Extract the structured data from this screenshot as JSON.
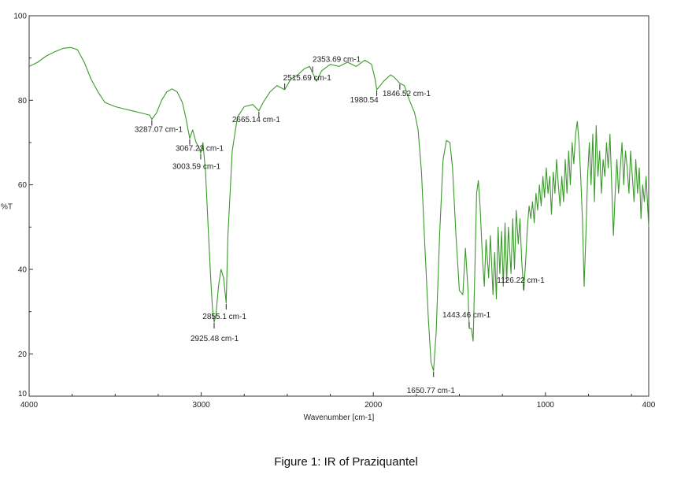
{
  "chart_data": {
    "type": "line",
    "xlabel": "Wavenumber [cm-1]",
    "ylabel": "%T",
    "xlim": [
      4000,
      400
    ],
    "ylim": [
      10,
      100
    ],
    "x_ticks": [
      "4000",
      "3000",
      "2000",
      "1000",
      "400"
    ],
    "y_ticks": [
      "100",
      "80",
      "60",
      "40",
      "20",
      "10"
    ],
    "grid": false,
    "legend": "none",
    "line_color": "#3a9a2a",
    "series": [
      {
        "points": [
          [
            4000,
            88
          ],
          [
            3950,
            89
          ],
          [
            3900,
            90.5
          ],
          [
            3850,
            91.5
          ],
          [
            3800,
            92.3
          ],
          [
            3760,
            92.5
          ],
          [
            3720,
            92
          ],
          [
            3680,
            89
          ],
          [
            3640,
            85
          ],
          [
            3600,
            82
          ],
          [
            3560,
            79.5
          ],
          [
            3500,
            78.5
          ],
          [
            3450,
            78
          ],
          [
            3400,
            77.5
          ],
          [
            3350,
            77
          ],
          [
            3300,
            76.5
          ],
          [
            3287,
            75.5
          ],
          [
            3260,
            77
          ],
          [
            3230,
            80
          ],
          [
            3200,
            82
          ],
          [
            3170,
            82.7
          ],
          [
            3140,
            82
          ],
          [
            3110,
            79.5
          ],
          [
            3090,
            76
          ],
          [
            3067,
            71
          ],
          [
            3050,
            73
          ],
          [
            3030,
            70
          ],
          [
            3015,
            69
          ],
          [
            3003,
            67.5
          ],
          [
            2990,
            70
          ],
          [
            2975,
            63
          ],
          [
            2960,
            50
          ],
          [
            2945,
            38
          ],
          [
            2935,
            31
          ],
          [
            2925,
            27.5
          ],
          [
            2915,
            29
          ],
          [
            2900,
            36
          ],
          [
            2885,
            40
          ],
          [
            2870,
            38
          ],
          [
            2855,
            32
          ],
          [
            2845,
            48
          ],
          [
            2820,
            68
          ],
          [
            2790,
            76
          ],
          [
            2750,
            78.5
          ],
          [
            2700,
            79
          ],
          [
            2665,
            77.5
          ],
          [
            2640,
            79.5
          ],
          [
            2600,
            82
          ],
          [
            2560,
            83.5
          ],
          [
            2515,
            82.5
          ],
          [
            2480,
            85
          ],
          [
            2440,
            86
          ],
          [
            2400,
            87.5
          ],
          [
            2370,
            88
          ],
          [
            2353,
            86.5
          ],
          [
            2330,
            84.5
          ],
          [
            2300,
            87
          ],
          [
            2250,
            88.5
          ],
          [
            2200,
            88
          ],
          [
            2150,
            89
          ],
          [
            2100,
            88
          ],
          [
            2050,
            89.5
          ],
          [
            2010,
            88.5
          ],
          [
            1990,
            85
          ],
          [
            1980,
            82.5
          ],
          [
            1960,
            83.5
          ],
          [
            1940,
            84.5
          ],
          [
            1900,
            86
          ],
          [
            1880,
            85.5
          ],
          [
            1846,
            84
          ],
          [
            1820,
            83.5
          ],
          [
            1790,
            80
          ],
          [
            1760,
            77
          ],
          [
            1740,
            73
          ],
          [
            1720,
            63
          ],
          [
            1700,
            45
          ],
          [
            1680,
            28
          ],
          [
            1665,
            18
          ],
          [
            1650,
            16
          ],
          [
            1635,
            25
          ],
          [
            1615,
            48
          ],
          [
            1595,
            66
          ],
          [
            1575,
            70.5
          ],
          [
            1555,
            70
          ],
          [
            1540,
            64
          ],
          [
            1520,
            48
          ],
          [
            1500,
            35
          ],
          [
            1480,
            34
          ],
          [
            1465,
            45
          ],
          [
            1450,
            35
          ],
          [
            1443,
            26
          ],
          [
            1430,
            26
          ],
          [
            1420,
            23
          ],
          [
            1410,
            40
          ],
          [
            1400,
            58
          ],
          [
            1390,
            61
          ],
          [
            1380,
            55
          ],
          [
            1365,
            42
          ],
          [
            1355,
            36
          ],
          [
            1345,
            47
          ],
          [
            1330,
            38
          ],
          [
            1320,
            48
          ],
          [
            1305,
            34
          ],
          [
            1295,
            44
          ],
          [
            1285,
            33
          ],
          [
            1275,
            50
          ],
          [
            1265,
            39
          ],
          [
            1255,
            49
          ],
          [
            1245,
            36
          ],
          [
            1235,
            51
          ],
          [
            1225,
            37
          ],
          [
            1215,
            50
          ],
          [
            1200,
            39
          ],
          [
            1190,
            52
          ],
          [
            1180,
            40
          ],
          [
            1170,
            54
          ],
          [
            1158,
            46
          ],
          [
            1148,
            52
          ],
          [
            1138,
            42
          ],
          [
            1126,
            35
          ],
          [
            1115,
            42
          ],
          [
            1105,
            50
          ],
          [
            1095,
            55
          ],
          [
            1085,
            52
          ],
          [
            1075,
            56
          ],
          [
            1065,
            51
          ],
          [
            1055,
            58
          ],
          [
            1045,
            54
          ],
          [
            1035,
            60
          ],
          [
            1025,
            55
          ],
          [
            1015,
            62
          ],
          [
            1005,
            57
          ],
          [
            995,
            64
          ],
          [
            985,
            58
          ],
          [
            975,
            62
          ],
          [
            965,
            53
          ],
          [
            955,
            63
          ],
          [
            945,
            58
          ],
          [
            935,
            66
          ],
          [
            925,
            60
          ],
          [
            915,
            55
          ],
          [
            905,
            62
          ],
          [
            895,
            56
          ],
          [
            885,
            66
          ],
          [
            875,
            58
          ],
          [
            865,
            68
          ],
          [
            855,
            60
          ],
          [
            845,
            70
          ],
          [
            835,
            65
          ],
          [
            825,
            72
          ],
          [
            815,
            75
          ],
          [
            805,
            70
          ],
          [
            795,
            62
          ],
          [
            785,
            52
          ],
          [
            775,
            36
          ],
          [
            765,
            48
          ],
          [
            755,
            62
          ],
          [
            745,
            70
          ],
          [
            735,
            60
          ],
          [
            725,
            72
          ],
          [
            715,
            56
          ],
          [
            705,
            74
          ],
          [
            695,
            62
          ],
          [
            685,
            68
          ],
          [
            675,
            58
          ],
          [
            665,
            66
          ],
          [
            655,
            62
          ],
          [
            645,
            70
          ],
          [
            635,
            64
          ],
          [
            625,
            72
          ],
          [
            615,
            60
          ],
          [
            605,
            48
          ],
          [
            595,
            58
          ],
          [
            585,
            66
          ],
          [
            575,
            58
          ],
          [
            565,
            64
          ],
          [
            555,
            70
          ],
          [
            545,
            60
          ],
          [
            535,
            68
          ],
          [
            525,
            64
          ],
          [
            515,
            58
          ],
          [
            505,
            68
          ],
          [
            495,
            62
          ],
          [
            485,
            56
          ],
          [
            475,
            66
          ],
          [
            465,
            58
          ],
          [
            455,
            64
          ],
          [
            445,
            52
          ],
          [
            435,
            60
          ],
          [
            425,
            56
          ],
          [
            415,
            62
          ],
          [
            405,
            54
          ],
          [
            400,
            50
          ]
        ]
      }
    ],
    "annotations": [
      {
        "label": "3287.07 cm-1",
        "x": 3287,
        "y": 75.5
      },
      {
        "label": "3067.23 cm-1",
        "x": 3067,
        "y": 71
      },
      {
        "label": "3003.59 cm-1",
        "x": 3003,
        "y": 67.5
      },
      {
        "label": "2925.48 cm-1",
        "x": 2925,
        "y": 27.5
      },
      {
        "label": "2855.1 cm-1",
        "x": 2855,
        "y": 32
      },
      {
        "label": "2665.14 cm-1",
        "x": 2665,
        "y": 77.5
      },
      {
        "label": "2515.69 cm-1",
        "x": 2515,
        "y": 82.5
      },
      {
        "label": "2353.69 cm-1",
        "x": 2353,
        "y": 86.5
      },
      {
        "label": "1980.54",
        "x": 1980,
        "y": 82.5
      },
      {
        "label": "1846.52 cm-1",
        "x": 1846,
        "y": 84
      },
      {
        "label": "1650.77 cm-1",
        "x": 1650,
        "y": 16
      },
      {
        "label": "1443.46 cm-1",
        "x": 1443,
        "y": 26
      },
      {
        "label": "1126.22 cm-1",
        "x": 1126,
        "y": 35
      }
    ]
  },
  "caption": "Figure 1: IR of Praziquantel"
}
